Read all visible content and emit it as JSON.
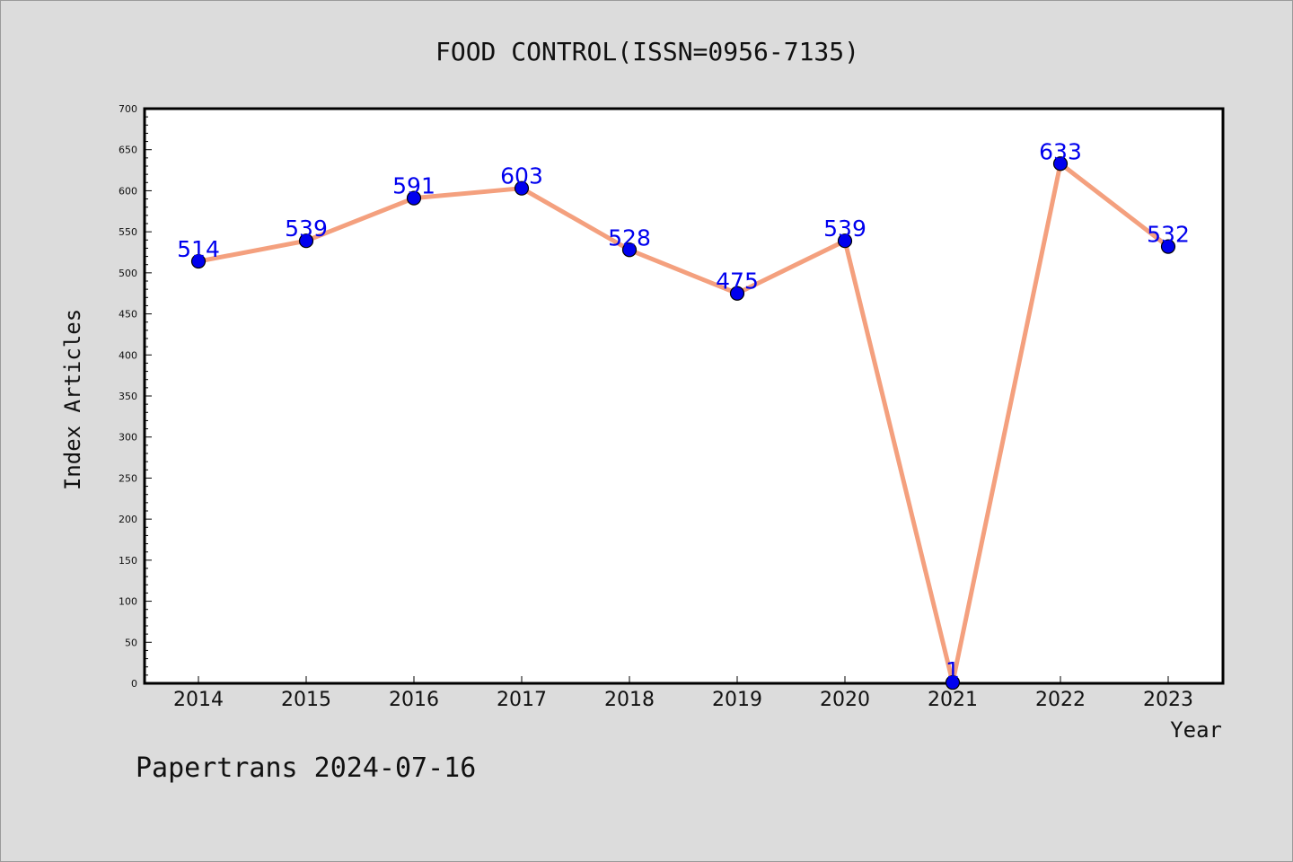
{
  "chart_data": {
    "type": "line",
    "title": "FOOD CONTROL(ISSN=0956-7135)",
    "xlabel": "Year",
    "ylabel": "Index Articles",
    "categories": [
      "2014",
      "2015",
      "2016",
      "2017",
      "2018",
      "2019",
      "2020",
      "2021",
      "2022",
      "2023"
    ],
    "series": [
      {
        "values": [
          514,
          539,
          591,
          603,
          528,
          475,
          539,
          1,
          633,
          532
        ]
      }
    ],
    "ylim": [
      0,
      700
    ],
    "yticks": [
      0,
      50,
      100,
      150,
      200,
      250,
      300,
      350,
      400,
      450,
      500,
      550,
      600,
      650,
      700
    ],
    "data_labels": true,
    "grid": false,
    "legend": "none",
    "colors": {
      "line": "#f4a07e",
      "marker": "#0000ee",
      "label": "#0000ee",
      "background": "#dcdcdc",
      "plot_area": "#ffffff"
    }
  },
  "footer": "Papertrans 2024-07-16"
}
